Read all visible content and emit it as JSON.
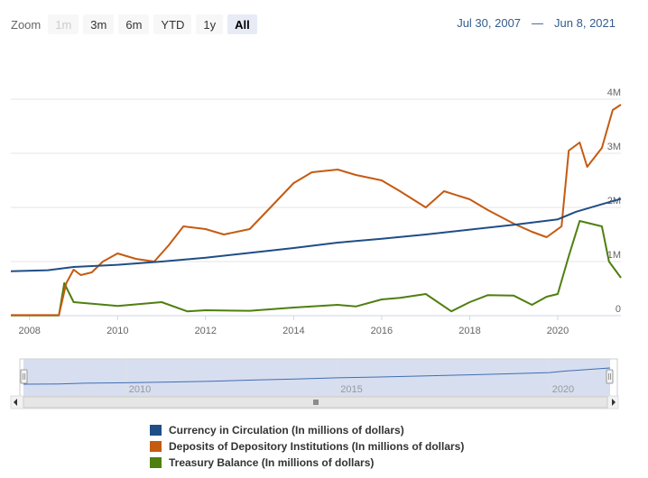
{
  "zoom": {
    "label": "Zoom",
    "buttons": [
      {
        "label": "1m",
        "state": "disabled"
      },
      {
        "label": "3m",
        "state": "normal"
      },
      {
        "label": "6m",
        "state": "normal"
      },
      {
        "label": "YTD",
        "state": "normal"
      },
      {
        "label": "1y",
        "state": "normal"
      },
      {
        "label": "All",
        "state": "active"
      }
    ]
  },
  "range": {
    "from": "Jul 30, 2007",
    "separator": "—",
    "to": "Jun 8, 2021"
  },
  "navigator": {
    "years": [
      "2010",
      "2015",
      "2020"
    ]
  },
  "colors": {
    "currency": "#1f4e86",
    "deposits": "#c55a11",
    "treasury": "#4f7f0f",
    "grid": "#e6e6e6",
    "axis_text": "#666666",
    "navigator_fill": "#cdd6ec"
  },
  "chart_data": {
    "type": "line",
    "x_range": [
      "2007-07-30",
      "2021-06-08"
    ],
    "ylim": [
      0,
      4000000
    ],
    "y_ticks": [
      0,
      1000000,
      2000000,
      3000000,
      4000000
    ],
    "y_tick_labels": [
      "0",
      "1M",
      "2M",
      "3M",
      "4M"
    ],
    "x_tick_labels": [
      "2008",
      "2010",
      "2012",
      "2014",
      "2016",
      "2018",
      "2020"
    ],
    "legend_position": "bottom",
    "series": [
      {
        "name": "Currency in Circulation (In millions of dollars)",
        "color": "#1f4e86",
        "points": [
          [
            "2007-07-30",
            820000
          ],
          [
            "2008-06-01",
            840000
          ],
          [
            "2009-01-01",
            900000
          ],
          [
            "2010-01-01",
            940000
          ],
          [
            "2011-01-01",
            1000000
          ],
          [
            "2012-01-01",
            1070000
          ],
          [
            "2013-01-01",
            1160000
          ],
          [
            "2014-01-01",
            1250000
          ],
          [
            "2015-01-01",
            1350000
          ],
          [
            "2016-01-01",
            1420000
          ],
          [
            "2017-01-01",
            1500000
          ],
          [
            "2018-01-01",
            1590000
          ],
          [
            "2019-01-01",
            1680000
          ],
          [
            "2020-01-01",
            1780000
          ],
          [
            "2020-06-01",
            1920000
          ],
          [
            "2021-01-01",
            2060000
          ],
          [
            "2021-06-08",
            2160000
          ]
        ]
      },
      {
        "name": "Deposits of Depository Institutions (In millions of dollars)",
        "color": "#c55a11",
        "points": [
          [
            "2007-07-30",
            10000
          ],
          [
            "2008-09-01",
            12000
          ],
          [
            "2008-11-01",
            600000
          ],
          [
            "2009-01-01",
            850000
          ],
          [
            "2009-03-01",
            750000
          ],
          [
            "2009-06-01",
            800000
          ],
          [
            "2009-09-01",
            1000000
          ],
          [
            "2010-01-01",
            1150000
          ],
          [
            "2010-06-01",
            1050000
          ],
          [
            "2010-11-01",
            1000000
          ],
          [
            "2011-03-01",
            1300000
          ],
          [
            "2011-07-01",
            1650000
          ],
          [
            "2012-01-01",
            1600000
          ],
          [
            "2012-06-01",
            1500000
          ],
          [
            "2013-01-01",
            1600000
          ],
          [
            "2013-06-01",
            1950000
          ],
          [
            "2014-01-01",
            2450000
          ],
          [
            "2014-06-01",
            2650000
          ],
          [
            "2015-01-01",
            2700000
          ],
          [
            "2015-06-01",
            2600000
          ],
          [
            "2016-01-01",
            2500000
          ],
          [
            "2016-06-01",
            2300000
          ],
          [
            "2017-01-01",
            2000000
          ],
          [
            "2017-06-01",
            2300000
          ],
          [
            "2018-01-01",
            2150000
          ],
          [
            "2018-06-01",
            1950000
          ],
          [
            "2019-01-01",
            1700000
          ],
          [
            "2019-06-01",
            1550000
          ],
          [
            "2019-10-01",
            1450000
          ],
          [
            "2020-02-01",
            1650000
          ],
          [
            "2020-04-01",
            3050000
          ],
          [
            "2020-07-01",
            3200000
          ],
          [
            "2020-09-01",
            2750000
          ],
          [
            "2021-01-01",
            3100000
          ],
          [
            "2021-04-01",
            3800000
          ],
          [
            "2021-06-08",
            3900000
          ]
        ]
      },
      {
        "name": "Treasury Balance (In millions of dollars)",
        "color": "#4f7f0f",
        "points": [
          [
            "2007-07-30",
            5000
          ],
          [
            "2008-09-01",
            5000
          ],
          [
            "2008-10-15",
            600000
          ],
          [
            "2009-01-01",
            250000
          ],
          [
            "2010-01-01",
            180000
          ],
          [
            "2011-01-01",
            250000
          ],
          [
            "2011-08-01",
            80000
          ],
          [
            "2012-01-01",
            100000
          ],
          [
            "2013-01-01",
            90000
          ],
          [
            "2014-01-01",
            150000
          ],
          [
            "2015-01-01",
            200000
          ],
          [
            "2015-06-01",
            170000
          ],
          [
            "2016-01-01",
            300000
          ],
          [
            "2016-06-01",
            330000
          ],
          [
            "2017-01-01",
            400000
          ],
          [
            "2017-08-01",
            80000
          ],
          [
            "2018-01-01",
            250000
          ],
          [
            "2018-06-01",
            380000
          ],
          [
            "2019-01-01",
            370000
          ],
          [
            "2019-06-01",
            200000
          ],
          [
            "2019-10-01",
            350000
          ],
          [
            "2020-01-01",
            400000
          ],
          [
            "2020-04-01",
            1100000
          ],
          [
            "2020-07-01",
            1750000
          ],
          [
            "2021-01-01",
            1650000
          ],
          [
            "2021-03-01",
            1000000
          ],
          [
            "2021-06-08",
            700000
          ]
        ]
      }
    ]
  }
}
